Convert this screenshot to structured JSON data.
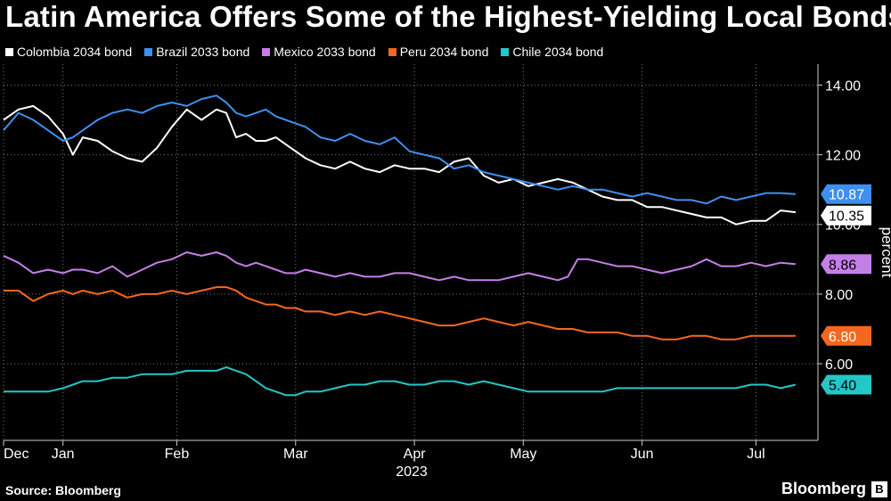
{
  "title": "Latin America Offers Some of the Highest-Yielding Local Bonds",
  "source": "Source: Bloomberg",
  "brand": "Bloomberg",
  "chart_data": {
    "type": "line",
    "title": "Latin America Offers Some of the Highest-Yielding Local Bonds",
    "ylabel": "percent",
    "ylim": [
      3.8,
      14.6
    ],
    "yticks": [
      6,
      8,
      10,
      12,
      14
    ],
    "ytick_labels": [
      "6.00",
      "8.00",
      "10.00",
      "12.00",
      "14.00"
    ],
    "xlim": [
      0,
      162
    ],
    "x_months": [
      {
        "label": "Dec",
        "x": 0
      },
      {
        "label": "Jan",
        "x": 12
      },
      {
        "label": "Feb",
        "x": 35
      },
      {
        "label": "Mar",
        "x": 59
      },
      {
        "label": "Apr",
        "x": 83
      },
      {
        "label": "May",
        "x": 105
      },
      {
        "label": "Jun",
        "x": 129
      },
      {
        "label": "Jul",
        "x": 152
      }
    ],
    "year_label": "2023",
    "series": [
      {
        "name": "Colombia 2034 bond",
        "color": "#ffffff",
        "last_label": "10.35",
        "x": [
          0,
          3,
          6,
          9,
          12,
          14,
          16,
          19,
          22,
          25,
          28,
          31,
          34,
          37,
          40,
          43,
          45,
          47,
          49,
          51,
          53,
          55,
          57,
          59,
          61,
          64,
          67,
          70,
          73,
          76,
          79,
          82,
          85,
          88,
          91,
          94,
          97,
          100,
          103,
          106,
          109,
          112,
          115,
          118,
          121,
          124,
          127,
          130,
          133,
          136,
          139,
          142,
          145,
          148,
          151,
          154,
          157,
          160
        ],
        "y": [
          13.0,
          13.3,
          13.4,
          13.1,
          12.6,
          12.0,
          12.5,
          12.4,
          12.1,
          11.9,
          11.8,
          12.2,
          12.8,
          13.3,
          13.0,
          13.3,
          13.2,
          12.5,
          12.6,
          12.4,
          12.4,
          12.5,
          12.3,
          12.1,
          11.9,
          11.7,
          11.6,
          11.8,
          11.6,
          11.5,
          11.7,
          11.6,
          11.6,
          11.5,
          11.8,
          11.9,
          11.4,
          11.2,
          11.3,
          11.1,
          11.2,
          11.3,
          11.2,
          11.0,
          10.8,
          10.7,
          10.7,
          10.5,
          10.5,
          10.4,
          10.3,
          10.2,
          10.2,
          10.0,
          10.1,
          10.1,
          10.4,
          10.35
        ]
      },
      {
        "name": "Brazil 2033 bond",
        "color": "#3f8ff0",
        "last_label": "10.87",
        "x": [
          0,
          3,
          6,
          9,
          12,
          14,
          16,
          19,
          22,
          25,
          28,
          31,
          34,
          37,
          40,
          43,
          45,
          47,
          49,
          51,
          53,
          55,
          57,
          59,
          61,
          64,
          67,
          70,
          73,
          76,
          79,
          82,
          85,
          88,
          91,
          94,
          97,
          100,
          103,
          106,
          109,
          112,
          115,
          118,
          121,
          124,
          127,
          130,
          133,
          136,
          139,
          142,
          145,
          148,
          151,
          154,
          157,
          160
        ],
        "y": [
          12.7,
          13.2,
          13.0,
          12.7,
          12.4,
          12.5,
          12.7,
          13.0,
          13.2,
          13.3,
          13.2,
          13.4,
          13.5,
          13.4,
          13.6,
          13.7,
          13.5,
          13.2,
          13.1,
          13.2,
          13.3,
          13.1,
          13.0,
          12.9,
          12.8,
          12.5,
          12.4,
          12.6,
          12.4,
          12.3,
          12.5,
          12.1,
          12.0,
          11.9,
          11.6,
          11.7,
          11.5,
          11.4,
          11.3,
          11.2,
          11.1,
          11.0,
          11.1,
          11.0,
          11.0,
          10.9,
          10.8,
          10.9,
          10.8,
          10.7,
          10.7,
          10.6,
          10.8,
          10.7,
          10.8,
          10.9,
          10.9,
          10.87
        ]
      },
      {
        "name": "Mexico 2033 bond",
        "color": "#c47fe8",
        "last_label": "8.86",
        "x": [
          0,
          3,
          6,
          9,
          12,
          14,
          16,
          19,
          22,
          25,
          28,
          31,
          34,
          37,
          40,
          43,
          45,
          47,
          49,
          51,
          53,
          55,
          57,
          59,
          61,
          64,
          67,
          70,
          73,
          76,
          79,
          82,
          85,
          88,
          91,
          94,
          97,
          100,
          103,
          106,
          109,
          112,
          114,
          116,
          118,
          121,
          124,
          127,
          130,
          133,
          136,
          139,
          142,
          145,
          148,
          151,
          154,
          157,
          160
        ],
        "y": [
          9.1,
          8.9,
          8.6,
          8.7,
          8.6,
          8.7,
          8.7,
          8.6,
          8.8,
          8.5,
          8.7,
          8.9,
          9.0,
          9.2,
          9.1,
          9.2,
          9.1,
          8.9,
          8.8,
          8.9,
          8.8,
          8.7,
          8.6,
          8.6,
          8.7,
          8.6,
          8.5,
          8.6,
          8.5,
          8.5,
          8.6,
          8.6,
          8.5,
          8.4,
          8.5,
          8.4,
          8.4,
          8.4,
          8.5,
          8.6,
          8.5,
          8.4,
          8.5,
          9.0,
          9.0,
          8.9,
          8.8,
          8.8,
          8.7,
          8.6,
          8.7,
          8.8,
          9.0,
          8.8,
          8.8,
          8.9,
          8.8,
          8.9,
          8.86
        ]
      },
      {
        "name": "Peru 2034 bond",
        "color": "#f4671f",
        "last_label": "6.80",
        "x": [
          0,
          3,
          6,
          9,
          12,
          14,
          16,
          19,
          22,
          25,
          28,
          31,
          34,
          37,
          40,
          43,
          45,
          47,
          49,
          51,
          53,
          55,
          57,
          59,
          61,
          64,
          67,
          70,
          73,
          76,
          79,
          82,
          85,
          88,
          91,
          94,
          97,
          100,
          103,
          106,
          109,
          112,
          115,
          118,
          121,
          124,
          127,
          130,
          133,
          136,
          139,
          142,
          145,
          148,
          151,
          154,
          157,
          160
        ],
        "y": [
          8.1,
          8.1,
          7.8,
          8.0,
          8.1,
          8.0,
          8.1,
          8.0,
          8.1,
          7.9,
          8.0,
          8.0,
          8.1,
          8.0,
          8.1,
          8.2,
          8.2,
          8.1,
          7.9,
          7.8,
          7.7,
          7.7,
          7.6,
          7.6,
          7.5,
          7.5,
          7.4,
          7.5,
          7.4,
          7.5,
          7.4,
          7.3,
          7.2,
          7.1,
          7.1,
          7.2,
          7.3,
          7.2,
          7.1,
          7.2,
          7.1,
          7.0,
          7.0,
          6.9,
          6.9,
          6.9,
          6.8,
          6.8,
          6.7,
          6.7,
          6.8,
          6.8,
          6.7,
          6.7,
          6.8,
          6.8,
          6.8,
          6.8
        ]
      },
      {
        "name": "Chile 2034 bond",
        "color": "#25c6c6",
        "last_label": "5.40",
        "x": [
          0,
          3,
          6,
          9,
          12,
          14,
          16,
          19,
          22,
          25,
          28,
          31,
          34,
          37,
          40,
          43,
          45,
          47,
          49,
          51,
          53,
          55,
          57,
          59,
          61,
          64,
          67,
          70,
          73,
          76,
          79,
          82,
          85,
          88,
          91,
          94,
          97,
          100,
          103,
          106,
          109,
          112,
          115,
          118,
          121,
          124,
          127,
          130,
          133,
          136,
          139,
          142,
          145,
          148,
          151,
          154,
          157,
          160
        ],
        "y": [
          5.2,
          5.2,
          5.2,
          5.2,
          5.3,
          5.4,
          5.5,
          5.5,
          5.6,
          5.6,
          5.7,
          5.7,
          5.7,
          5.8,
          5.8,
          5.8,
          5.9,
          5.8,
          5.7,
          5.5,
          5.3,
          5.2,
          5.1,
          5.1,
          5.2,
          5.2,
          5.3,
          5.4,
          5.4,
          5.5,
          5.5,
          5.4,
          5.4,
          5.5,
          5.5,
          5.4,
          5.5,
          5.4,
          5.3,
          5.2,
          5.2,
          5.2,
          5.2,
          5.2,
          5.2,
          5.3,
          5.3,
          5.3,
          5.3,
          5.3,
          5.3,
          5.3,
          5.3,
          5.3,
          5.4,
          5.4,
          5.3,
          5.4
        ]
      }
    ]
  }
}
